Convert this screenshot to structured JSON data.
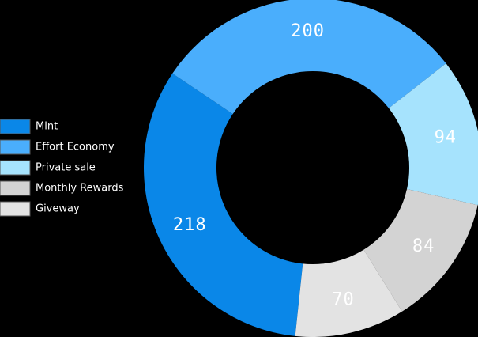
{
  "chart_data": {
    "type": "pie",
    "variant": "donut",
    "categories": [
      "Mint",
      "Effort Economy",
      "Private sale",
      "Monthly Rewards",
      "Giveway"
    ],
    "values": [
      218,
      200,
      94,
      84,
      70
    ],
    "colors": [
      "#0a87e8",
      "#4aaefc",
      "#a6e3fd",
      "#d3d3d3",
      "#e3e3e3"
    ],
    "legend_position": "left"
  }
}
